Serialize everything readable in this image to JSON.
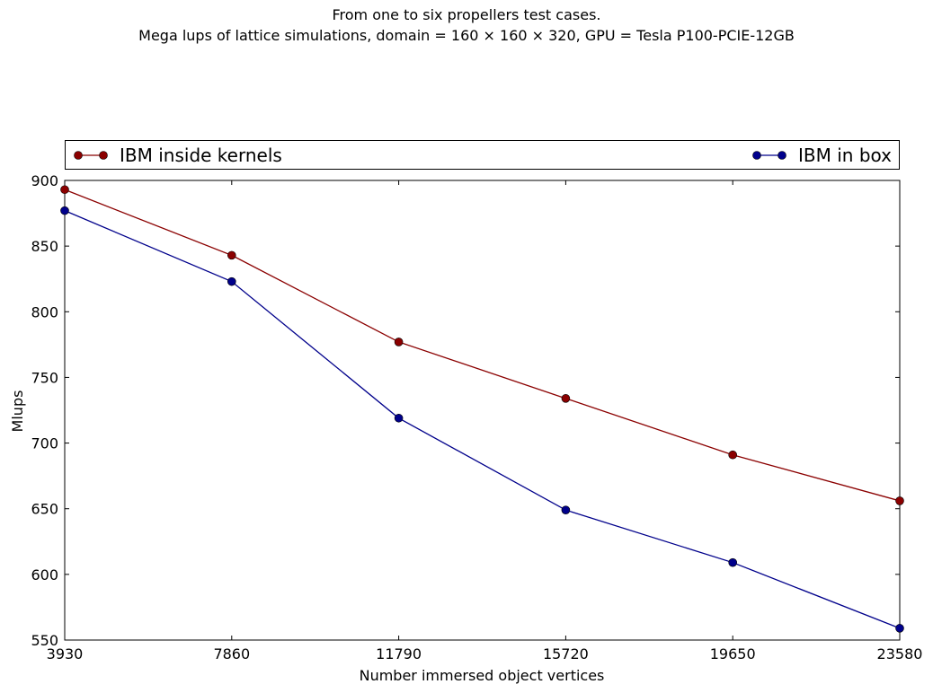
{
  "title_lines": [
    "From one to six propellers test cases.",
    "Mega lups of lattice simulations, domain = 160 × 160 × 320, GPU = Tesla P100-PCIE-12GB"
  ],
  "chart_data": {
    "type": "line",
    "x": [
      3930,
      7860,
      11790,
      15720,
      19650,
      23580
    ],
    "xticks": [
      "3930",
      "7860",
      "11790",
      "15720",
      "19650",
      "23580"
    ],
    "yticks": [
      "550",
      "600",
      "650",
      "700",
      "750",
      "800",
      "850",
      "900"
    ],
    "xlim": [
      3930,
      23580
    ],
    "ylim": [
      550,
      900
    ],
    "xlabel": "Number immersed object vertices",
    "ylabel": "Mlups",
    "grid": false,
    "legend_position": "top, above plot (expanded)",
    "series": [
      {
        "name": "IBM inside kernels",
        "color": "#8b0000",
        "marker": "circle",
        "values": [
          893,
          843,
          777,
          734,
          691,
          656
        ]
      },
      {
        "name": "IBM in box",
        "color": "#00008b",
        "marker": "circle",
        "values": [
          877,
          823,
          719,
          649,
          609,
          559
        ]
      }
    ]
  }
}
